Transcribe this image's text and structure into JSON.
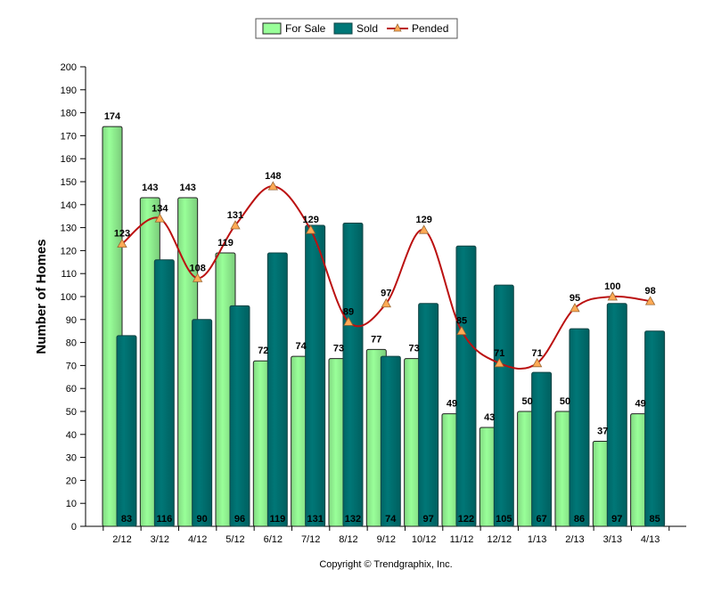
{
  "chart_data": {
    "type": "bar",
    "categories": [
      "2/12",
      "3/12",
      "4/12",
      "5/12",
      "6/12",
      "7/12",
      "8/12",
      "9/12",
      "10/12",
      "11/12",
      "12/12",
      "1/13",
      "2/13",
      "3/13",
      "4/13"
    ],
    "series": [
      {
        "name": "For Sale",
        "kind": "bar",
        "color": "#99ff99",
        "values": [
          174,
          143,
          143,
          119,
          72,
          74,
          73,
          77,
          73,
          49,
          43,
          50,
          50,
          37,
          49
        ]
      },
      {
        "name": "Sold",
        "kind": "bar",
        "color": "#007777",
        "values": [
          83,
          116,
          90,
          96,
          119,
          131,
          132,
          74,
          97,
          122,
          105,
          67,
          86,
          97,
          85
        ]
      },
      {
        "name": "Pended",
        "kind": "line",
        "color": "#bb1111",
        "marker_color": "#ffaa55",
        "values": [
          123,
          134,
          108,
          131,
          148,
          129,
          89,
          97,
          129,
          85,
          71,
          71,
          95,
          100,
          98
        ]
      }
    ],
    "title": "",
    "xlabel": "",
    "ylabel": "Number of Homes",
    "ylim": [
      0,
      200
    ],
    "ytick_step": 10,
    "grid": false,
    "legend_position": "top-center",
    "footer": "Copyright © Trendgraphix, Inc."
  }
}
